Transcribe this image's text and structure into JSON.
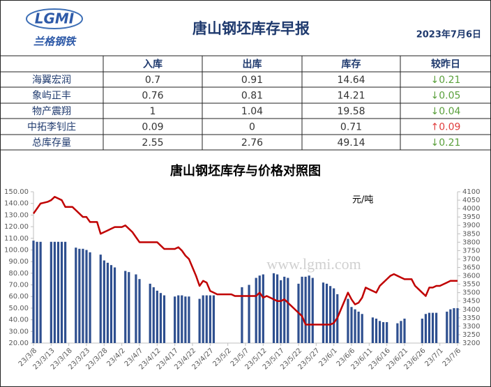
{
  "header": {
    "logo": "LGMI",
    "logo_subtitle": "兰格钢铁",
    "title": "唐山钢坯库存早报",
    "date": "2023年7月6日"
  },
  "table": {
    "columns": [
      "入库",
      "出库",
      "库存",
      "较昨日"
    ],
    "rows": [
      [
        "海翼宏润",
        "0.7",
        "0.91",
        "14.64",
        "↓0.21"
      ],
      [
        "象屿正丰",
        "0.76",
        "0.81",
        "14.21",
        "↓0.05"
      ],
      [
        "物产震翔",
        "1",
        "1.04",
        "19.58",
        "↓0.04"
      ],
      [
        "中拓李钊庄",
        "0.09",
        "0",
        "0.71",
        "↑0.09"
      ],
      [
        "总库存量",
        "2.55",
        "2.76",
        "49.14",
        "↓0.21"
      ]
    ],
    "change_colors": [
      "#5aa03c",
      "#5aa03c",
      "#5aa03c",
      "#e03c3c",
      "#5aa03c"
    ]
  },
  "chart_data": {
    "type": "combo",
    "title": "唐山钢坯库存与价格对照图",
    "annotation": "元/吨",
    "watermark": "www.lgmi.com",
    "categories": [
      "23/3/8",
      null,
      null,
      null,
      null,
      "23/3/13",
      null,
      null,
      null,
      null,
      "23/3/18",
      null,
      null,
      null,
      null,
      "23/3/23",
      null,
      null,
      null,
      null,
      "23/3/28",
      null,
      null,
      null,
      null,
      "23/4/2",
      null,
      null,
      null,
      null,
      "23/4/7",
      null,
      null,
      null,
      null,
      "23/4/12",
      null,
      null,
      null,
      null,
      "23/4/17",
      null,
      null,
      null,
      null,
      "23/4/22",
      null,
      null,
      null,
      null,
      "23/4/27",
      null,
      null,
      null,
      null,
      "23/5/2",
      null,
      null,
      null,
      null,
      "23/5/7",
      null,
      null,
      null,
      null,
      "23/5/12",
      null,
      null,
      null,
      null,
      "23/5/17",
      null,
      null,
      null,
      null,
      "23/5/22",
      null,
      null,
      null,
      null,
      "23/5/27",
      null,
      null,
      null,
      null,
      "23/6/1",
      null,
      null,
      null,
      null,
      "23/6/6",
      null,
      null,
      null,
      null,
      "23/6/11",
      null,
      null,
      null,
      null,
      "23/6/16",
      null,
      null,
      null,
      null,
      "23/6/21",
      null,
      null,
      null,
      null,
      "23/6/26",
      null,
      null,
      null,
      null,
      "23/7/1",
      null,
      null,
      null,
      null,
      "23/7/6"
    ],
    "series": [
      {
        "type": "bar",
        "color": "#2e4f8f",
        "values": [
          108,
          107,
          107,
          null,
          null,
          107,
          107,
          107,
          107,
          107,
          null,
          null,
          102,
          101,
          101,
          100,
          98,
          null,
          null,
          96,
          91,
          89,
          87,
          85,
          null,
          null,
          82,
          81,
          null,
          79,
          75,
          null,
          null,
          71,
          68,
          65,
          63,
          61,
          null,
          null,
          60,
          61,
          61,
          60,
          60,
          null,
          null,
          58,
          61,
          61,
          61,
          61,
          null,
          null,
          null,
          null,
          null,
          null,
          null,
          68,
          null,
          70,
          null,
          76,
          78,
          79,
          null,
          null,
          80,
          79,
          74,
          77,
          76,
          null,
          null,
          71,
          77,
          77,
          78,
          76,
          null,
          null,
          72,
          71,
          69,
          67,
          62,
          null,
          null,
          58,
          51,
          49,
          47,
          45,
          null,
          null,
          42,
          41,
          39,
          38,
          38,
          null,
          null,
          37,
          39,
          41,
          null,
          null,
          null,
          null,
          41,
          45,
          46,
          46,
          46,
          null,
          null,
          47,
          49,
          50,
          50
        ]
      },
      {
        "type": "line",
        "axis": "y2",
        "color": "#c00000",
        "values": [
          3970,
          4000,
          4030,
          4035,
          4040,
          4050,
          4070,
          4060,
          4050,
          4010,
          4010,
          4010,
          3990,
          3970,
          3950,
          3950,
          3920,
          3920,
          3920,
          3850,
          3860,
          3870,
          3880,
          3890,
          3890,
          3890,
          3900,
          3880,
          3860,
          3830,
          3800,
          3800,
          3800,
          3800,
          3800,
          3800,
          3780,
          3760,
          3760,
          3760,
          3760,
          3770,
          3750,
          3720,
          3700,
          3650,
          3600,
          3540,
          3570,
          3560,
          3510,
          3500,
          3490,
          3490,
          3490,
          3490,
          3490,
          3480,
          3480,
          3480,
          3480,
          3480,
          3480,
          3480,
          3500,
          3470,
          3480,
          3470,
          3460,
          3450,
          3450,
          3460,
          3440,
          3420,
          3400,
          3380,
          3360,
          3310,
          3310,
          3310,
          3310,
          3310,
          3310,
          3310,
          3310,
          3320,
          3350,
          3400,
          3450,
          3500,
          3460,
          3430,
          3440,
          3470,
          3530,
          3520,
          3510,
          3500,
          3540,
          3560,
          3580,
          3600,
          3610,
          3600,
          3590,
          3580,
          3580,
          3580,
          3540,
          3520,
          3500,
          3480,
          3530,
          3530,
          3540,
          3540,
          3550,
          3560,
          3570,
          3570,
          3570
        ]
      }
    ],
    "ylim": [
      20,
      150
    ],
    "yticks": [
      {
        "value": 20,
        "label": "20.00"
      },
      {
        "value": 30,
        "label": "30.00"
      },
      {
        "value": 40,
        "label": "40.00"
      },
      {
        "value": 50,
        "label": "50.00"
      },
      {
        "value": 60,
        "label": "60.00"
      },
      {
        "value": 70,
        "label": "70.00"
      },
      {
        "value": 80,
        "label": "80.00"
      },
      {
        "value": 90,
        "label": "90.00"
      },
      {
        "value": 100,
        "label": "100.00"
      },
      {
        "value": 110,
        "label": "110.00"
      },
      {
        "value": 120,
        "label": "120.00"
      },
      {
        "value": 130,
        "label": "130.00"
      },
      {
        "value": 140,
        "label": "140.00"
      },
      {
        "value": 150,
        "label": "150.00"
      }
    ],
    "y2lim": [
      3200,
      4100
    ],
    "y2ticks": [
      3200,
      3250,
      3300,
      3350,
      3400,
      3450,
      3500,
      3550,
      3600,
      3650,
      3700,
      3750,
      3800,
      3850,
      3900,
      3950,
      4000,
      4050,
      4100
    ]
  }
}
